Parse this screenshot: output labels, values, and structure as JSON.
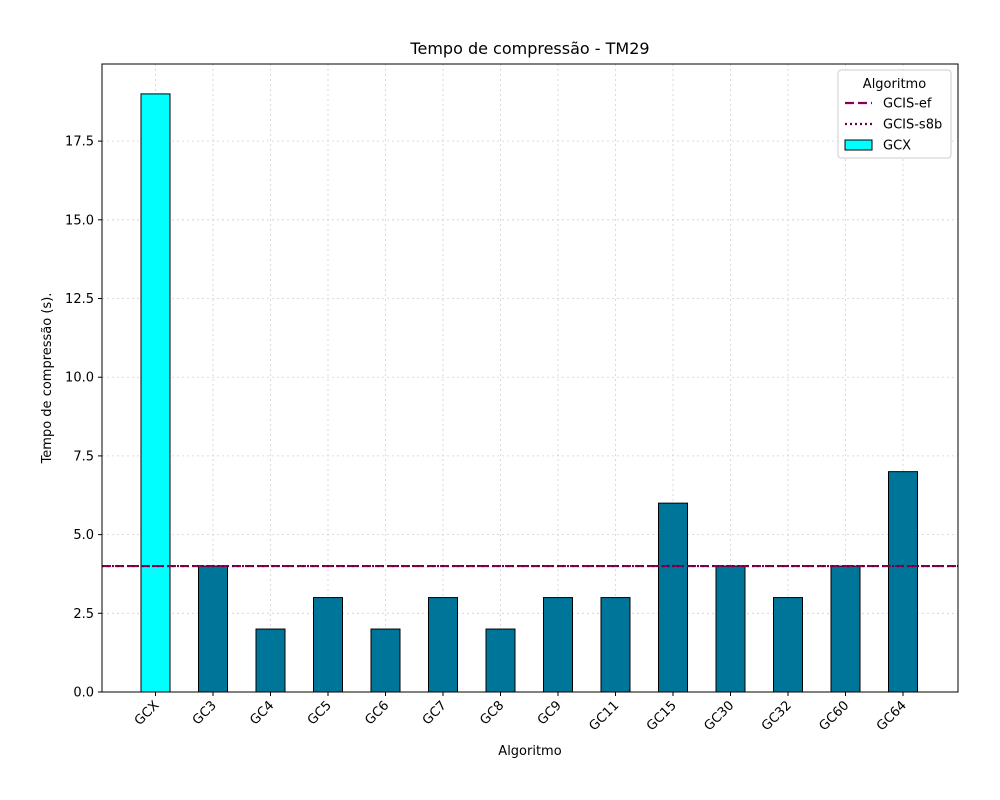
{
  "chart_data": {
    "type": "bar",
    "title": "Tempo de compressão -  TM29",
    "xlabel": "Algoritmo",
    "ylabel": "Tempo de compressão (s).",
    "categories": [
      "GCX",
      "GC3",
      "GC4",
      "GC5",
      "GC6",
      "GC7",
      "GC8",
      "GC9",
      "GC11",
      "GC15",
      "GC30",
      "GC32",
      "GC60",
      "GC64"
    ],
    "values": [
      19,
      4,
      2,
      3,
      2,
      3,
      2,
      3,
      3,
      6,
      4,
      3,
      4,
      7
    ],
    "bar_colors": [
      "#00ffff",
      "#00759a",
      "#00759a",
      "#00759a",
      "#00759a",
      "#00759a",
      "#00759a",
      "#00759a",
      "#00759a",
      "#00759a",
      "#00759a",
      "#00759a",
      "#00759a",
      "#00759a"
    ],
    "ylim": [
      0,
      19.95
    ],
    "yticks": [
      0.0,
      2.5,
      5.0,
      7.5,
      10.0,
      12.5,
      15.0,
      17.5
    ],
    "ytick_labels": [
      "0.0",
      "2.5",
      "5.0",
      "7.5",
      "10.0",
      "12.5",
      "15.0",
      "17.5"
    ],
    "hlines": [
      {
        "name": "GCIS-ef",
        "value": 4,
        "style": "dashed",
        "color": "#8b0055"
      },
      {
        "name": "GCIS-s8b",
        "value": 4,
        "style": "dotted",
        "color": "#6b0040"
      }
    ],
    "grid": true,
    "legend": {
      "title": "Algoritmo",
      "placement": "top-right",
      "entries": [
        {
          "label": "GCIS-ef",
          "kind": "dashed-line",
          "color": "#8b0055"
        },
        {
          "label": "GCIS-s8b",
          "kind": "dotted-line",
          "color": "#6b0040"
        },
        {
          "label": "GCX",
          "kind": "patch",
          "color": "#00ffff"
        }
      ]
    }
  }
}
